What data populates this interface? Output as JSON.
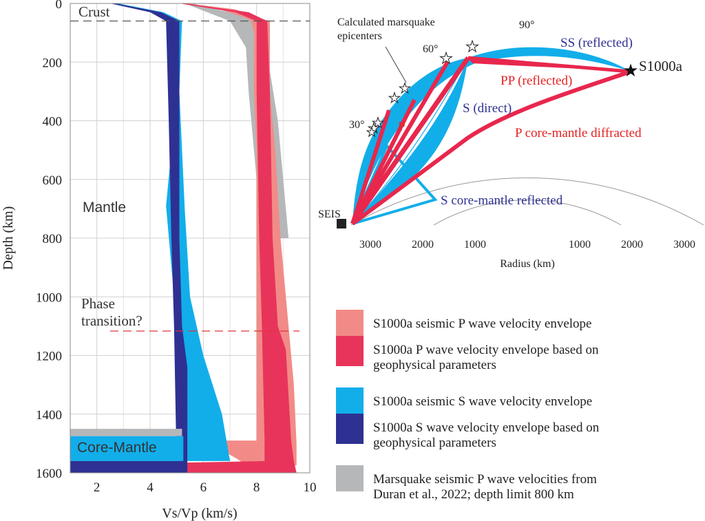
{
  "colors": {
    "p_seismic": "#f28b87",
    "p_geophys": "#e8345a",
    "s_seismic": "#12aeea",
    "s_geophys": "#2e3192",
    "marsquake": "#b5b7b9",
    "label_red": "#e32322",
    "label_blue": "#2e3192"
  },
  "chart_data": [
    {
      "type": "area",
      "panel": "velocity-depth profile",
      "xlabel": "Vs/Vp (km/s)",
      "ylabel": "Depth (km)",
      "xlim": [
        1,
        10
      ],
      "ylim": [
        1600,
        0
      ],
      "xticks": [
        "2",
        "4",
        "6",
        "8",
        "10"
      ],
      "yticks": [
        "0",
        "200",
        "400",
        "600",
        "800",
        "1000",
        "1200",
        "1400",
        "1600"
      ],
      "grid": true,
      "annotations": {
        "crust": "Crust",
        "mantle": "Mantle",
        "phase_1": "Phase",
        "phase_2": "transition?",
        "core_mantle": "Core-Mantle"
      },
      "reference_lines": {
        "crust_depth_km": 60,
        "phase_transition_depth_km": 1115
      },
      "series": [
        {
          "name": "S1000a seismic P wave velocity envelope",
          "color_key": "p_seismic",
          "lower": [
            [
              0,
              5.1
            ],
            [
              20,
              6.6
            ],
            [
              50,
              7.6
            ],
            [
              60,
              7.8
            ],
            [
              100,
              7.9
            ],
            [
              300,
              7.9
            ],
            [
              500,
              8.0
            ],
            [
              800,
              8.0
            ],
            [
              1100,
              8.0
            ],
            [
              1480,
              8.0
            ],
            [
              1490,
              8.0
            ],
            [
              1490,
              6.1
            ],
            [
              1560,
              7.4
            ],
            [
              1575,
              7.4
            ]
          ],
          "upper": [
            [
              0,
              5.4
            ],
            [
              20,
              7.2
            ],
            [
              50,
              8.1
            ],
            [
              60,
              8.5
            ],
            [
              200,
              8.5
            ],
            [
              300,
              8.5
            ],
            [
              500,
              8.7
            ],
            [
              800,
              8.9
            ],
            [
              1100,
              9.2
            ],
            [
              1300,
              9.4
            ],
            [
              1500,
              9.5
            ],
            [
              1575,
              9.5
            ]
          ]
        },
        {
          "name": "S1000a P wave velocity envelope based on geophysical parameters",
          "color_key": "p_geophys",
          "lower": [
            [
              0,
              5.1
            ],
            [
              30,
              7.2
            ],
            [
              60,
              8.0
            ],
            [
              300,
              8.0
            ],
            [
              800,
              8.1
            ],
            [
              1100,
              8.2
            ],
            [
              1490,
              8.3
            ],
            [
              1560,
              8.3
            ],
            [
              1565,
              5.3
            ],
            [
              1600,
              5.3
            ]
          ],
          "upper": [
            [
              0,
              5.3
            ],
            [
              30,
              7.7
            ],
            [
              60,
              8.4
            ],
            [
              300,
              8.5
            ],
            [
              800,
              8.6
            ],
            [
              1100,
              8.8
            ],
            [
              1180,
              9.1
            ],
            [
              1490,
              9.3
            ],
            [
              1560,
              9.4
            ],
            [
              1600,
              9.5
            ]
          ]
        },
        {
          "name": "S1000a seismic S wave velocity envelope",
          "color_key": "s_seismic",
          "lower": [
            [
              0,
              2.6
            ],
            [
              30,
              4.1
            ],
            [
              60,
              4.8
            ],
            [
              200,
              4.8
            ],
            [
              500,
              4.8
            ],
            [
              690,
              4.6
            ],
            [
              1000,
              4.9
            ],
            [
              1200,
              5.0
            ],
            [
              1480,
              5.2
            ],
            [
              1560,
              5.2
            ]
          ],
          "upper": [
            [
              0,
              2.8
            ],
            [
              30,
              4.5
            ],
            [
              60,
              5.2
            ],
            [
              300,
              5.1
            ],
            [
              700,
              5.3
            ],
            [
              1000,
              5.5
            ],
            [
              1200,
              6.0
            ],
            [
              1400,
              6.7
            ],
            [
              1560,
              7.0
            ]
          ]
        },
        {
          "name": "S1000a S wave velocity envelope based on geophysical parameters",
          "color_key": "s_geophys",
          "lower": [
            [
              0,
              2.5
            ],
            [
              30,
              4.0
            ],
            [
              60,
              4.6
            ],
            [
              400,
              4.7
            ],
            [
              800,
              4.8
            ],
            [
              1100,
              4.9
            ],
            [
              1600,
              5.0
            ]
          ],
          "upper": [
            [
              0,
              2.7
            ],
            [
              30,
              4.4
            ],
            [
              60,
              5.1
            ],
            [
              400,
              5.1
            ],
            [
              800,
              5.1
            ],
            [
              1100,
              5.2
            ],
            [
              1240,
              5.4
            ],
            [
              1600,
              5.4
            ]
          ]
        },
        {
          "name": "Marsquake seismic P wave velocities from Duran et al., 2022; depth limit 800 km",
          "color_key": "marsquake",
          "lower": [
            [
              0,
              5.3
            ],
            [
              60,
              7.0
            ],
            [
              150,
              7.6
            ],
            [
              300,
              7.7
            ],
            [
              600,
              8.0
            ],
            [
              800,
              8.2
            ]
          ],
          "upper": [
            [
              0,
              5.6
            ],
            [
              60,
              8.3
            ],
            [
              230,
              8.5
            ],
            [
              400,
              8.8
            ],
            [
              600,
              9.0
            ],
            [
              800,
              9.2
            ]
          ]
        }
      ]
    },
    {
      "type": "diagram",
      "panel": "ray paths in Mars cross-section",
      "xlabel": "Radius (km)",
      "radius_ticks": [
        "3000",
        "2000",
        "1000",
        "1000",
        "2000",
        "3000"
      ],
      "angle_labels": [
        "90°",
        "60°",
        "30°"
      ],
      "labels": {
        "epicenters_1": "Calculated marsquake",
        "epicenters_2": "epicenters",
        "event": "S1000a",
        "station": "SEIS",
        "ss": "SS (reflected)",
        "pp": "PP (reflected)",
        "s_direct": "S (direct)",
        "p": "P",
        "p_core": "P core-mantle diffracted",
        "s_core": "S core-mantle reflected"
      }
    }
  ],
  "legend": [
    {
      "key": "p_seismic",
      "lines": [
        "S1000a seismic P wave velocity envelope"
      ]
    },
    {
      "key": "p_geophys",
      "lines": [
        "S1000a P wave velocity envelope based on",
        "geophysical parameters"
      ]
    },
    {
      "key": "s_seismic",
      "lines": [
        "S1000a seismic S wave velocity envelope"
      ]
    },
    {
      "key": "s_geophys",
      "lines": [
        "S1000a S wave velocity envelope based on",
        "geophysical parameters"
      ]
    },
    {
      "key": "marsquake",
      "lines": [
        "Marsquake seismic P wave velocities from",
        "Duran et al., 2022; depth limit 800 km"
      ]
    }
  ]
}
